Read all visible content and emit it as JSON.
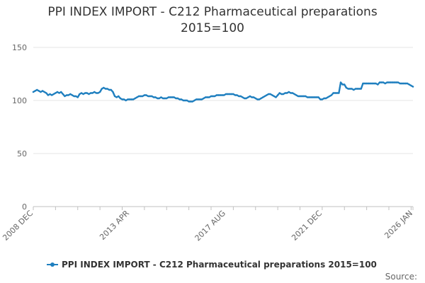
{
  "chart_data": {
    "type": "line",
    "title_lines": [
      "PPI INDEX IMPORT - C212 Pharmaceutical preparations",
      "2015=100"
    ],
    "xlabel": "",
    "ylabel": "",
    "ylim": [
      0,
      150
    ],
    "yticks": [
      0,
      50,
      100,
      150
    ],
    "xlim": [
      "2008-12",
      "2026-01"
    ],
    "xtick_labels": [
      "2008 DEC",
      "2013 APR",
      "2017 AUG",
      "2021 DEC",
      "2026 JAN"
    ],
    "grid": true,
    "legend_position": "bottom",
    "source_label": "Source:",
    "series": [
      {
        "name": "PPI INDEX IMPORT - C212 Pharmaceutical preparations 2015=100",
        "color": "#1f7fbf",
        "x": [
          "2008-12",
          "2009-01",
          "2009-02",
          "2009-03",
          "2009-04",
          "2009-05",
          "2009-06",
          "2009-07",
          "2009-08",
          "2009-09",
          "2009-10",
          "2009-11",
          "2009-12",
          "2010-01",
          "2010-02",
          "2010-03",
          "2010-04",
          "2010-05",
          "2010-06",
          "2010-07",
          "2010-08",
          "2010-09",
          "2010-10",
          "2010-11",
          "2010-12",
          "2011-01",
          "2011-02",
          "2011-03",
          "2011-04",
          "2011-05",
          "2011-06",
          "2011-07",
          "2011-08",
          "2011-09",
          "2011-10",
          "2011-11",
          "2011-12",
          "2012-01",
          "2012-02",
          "2012-03",
          "2012-04",
          "2012-05",
          "2012-06",
          "2012-07",
          "2012-08",
          "2012-09",
          "2012-10",
          "2012-11",
          "2012-12",
          "2013-01",
          "2013-02",
          "2013-03",
          "2013-04",
          "2013-05",
          "2013-06",
          "2013-07",
          "2013-08",
          "2013-09",
          "2013-10",
          "2013-11",
          "2013-12",
          "2014-01",
          "2014-02",
          "2014-03",
          "2014-04",
          "2014-05",
          "2014-06",
          "2014-07",
          "2014-08",
          "2014-09",
          "2014-10",
          "2014-11",
          "2014-12",
          "2015-01",
          "2015-02",
          "2015-03",
          "2015-04",
          "2015-05",
          "2015-06",
          "2015-07",
          "2015-08",
          "2015-09",
          "2015-10",
          "2015-11",
          "2015-12",
          "2016-01",
          "2016-02",
          "2016-03",
          "2016-04",
          "2016-05",
          "2016-06",
          "2016-07",
          "2016-08",
          "2016-09",
          "2016-10",
          "2016-11",
          "2016-12",
          "2017-01",
          "2017-02",
          "2017-03",
          "2017-04",
          "2017-05",
          "2017-06",
          "2017-07",
          "2017-08",
          "2017-09",
          "2017-10",
          "2017-11",
          "2017-12",
          "2018-01",
          "2018-02",
          "2018-03",
          "2018-04",
          "2018-05",
          "2018-06",
          "2018-07",
          "2018-08",
          "2018-09",
          "2018-10",
          "2018-11",
          "2018-12",
          "2019-01",
          "2019-02",
          "2019-03",
          "2019-04",
          "2019-05",
          "2019-06",
          "2019-07",
          "2019-08",
          "2019-09",
          "2019-10",
          "2019-11",
          "2019-12",
          "2020-01",
          "2020-02",
          "2020-03",
          "2020-04",
          "2020-05",
          "2020-06",
          "2020-07",
          "2020-08",
          "2020-09",
          "2020-10",
          "2020-11",
          "2020-12",
          "2021-01",
          "2021-02",
          "2021-03",
          "2021-04",
          "2021-05",
          "2021-06",
          "2021-07",
          "2021-08",
          "2021-09",
          "2021-10",
          "2021-11",
          "2021-12",
          "2022-01",
          "2022-02",
          "2022-03",
          "2022-04",
          "2022-05",
          "2022-06",
          "2022-07",
          "2022-08",
          "2022-09",
          "2022-10",
          "2022-11",
          "2022-12",
          "2023-01",
          "2023-02",
          "2023-03",
          "2023-04",
          "2023-05",
          "2023-06",
          "2023-07",
          "2023-08",
          "2023-09",
          "2023-10",
          "2023-11",
          "2023-12",
          "2024-01",
          "2024-02",
          "2024-03",
          "2024-04",
          "2024-05",
          "2024-06",
          "2024-07",
          "2024-08",
          "2024-09",
          "2024-10",
          "2024-11",
          "2024-12",
          "2025-01",
          "2025-02",
          "2025-03",
          "2025-04",
          "2025-05",
          "2025-06",
          "2025-07",
          "2025-08",
          "2025-09",
          "2025-10",
          "2025-11",
          "2025-12",
          "2026-01"
        ],
        "values": [
          108,
          109,
          110,
          109,
          108,
          109,
          108,
          107,
          105,
          106,
          105,
          106,
          107,
          108,
          107,
          108,
          106,
          104,
          105,
          105,
          106,
          105,
          104,
          104,
          103,
          106,
          107,
          106,
          107,
          107,
          106,
          107,
          107,
          108,
          107,
          107,
          108,
          111,
          112,
          111,
          111,
          110,
          110,
          108,
          104,
          103,
          104,
          102,
          101,
          101,
          100,
          101,
          101,
          101,
          101,
          102,
          103,
          104,
          104,
          104,
          105,
          105,
          104,
          104,
          104,
          103,
          103,
          102,
          102,
          103,
          102,
          102,
          102,
          103,
          103,
          103,
          103,
          102,
          102,
          101,
          101,
          100,
          100,
          100,
          99,
          99,
          99,
          100,
          101,
          101,
          101,
          101,
          102,
          103,
          103,
          103,
          104,
          104,
          104,
          105,
          105,
          105,
          105,
          105,
          106,
          106,
          106,
          106,
          106,
          105,
          105,
          104,
          104,
          103,
          102,
          102,
          103,
          104,
          103,
          103,
          102,
          101,
          101,
          102,
          103,
          104,
          105,
          106,
          106,
          105,
          104,
          103,
          105,
          107,
          106,
          106,
          107,
          107,
          108,
          107,
          107,
          106,
          105,
          104,
          104,
          104,
          104,
          104,
          103,
          103,
          103,
          103,
          103,
          103,
          103,
          101,
          101,
          102,
          102,
          103,
          104,
          105,
          107,
          107,
          107,
          107,
          117,
          115,
          115,
          112,
          111,
          111,
          111,
          110,
          111,
          111,
          111,
          111,
          116,
          116,
          116,
          116,
          116,
          116,
          116,
          116,
          115,
          117,
          117,
          117,
          116,
          117,
          117,
          117,
          117,
          117,
          117,
          117,
          116,
          116,
          116,
          116,
          116,
          115,
          114,
          113
        ]
      }
    ]
  }
}
